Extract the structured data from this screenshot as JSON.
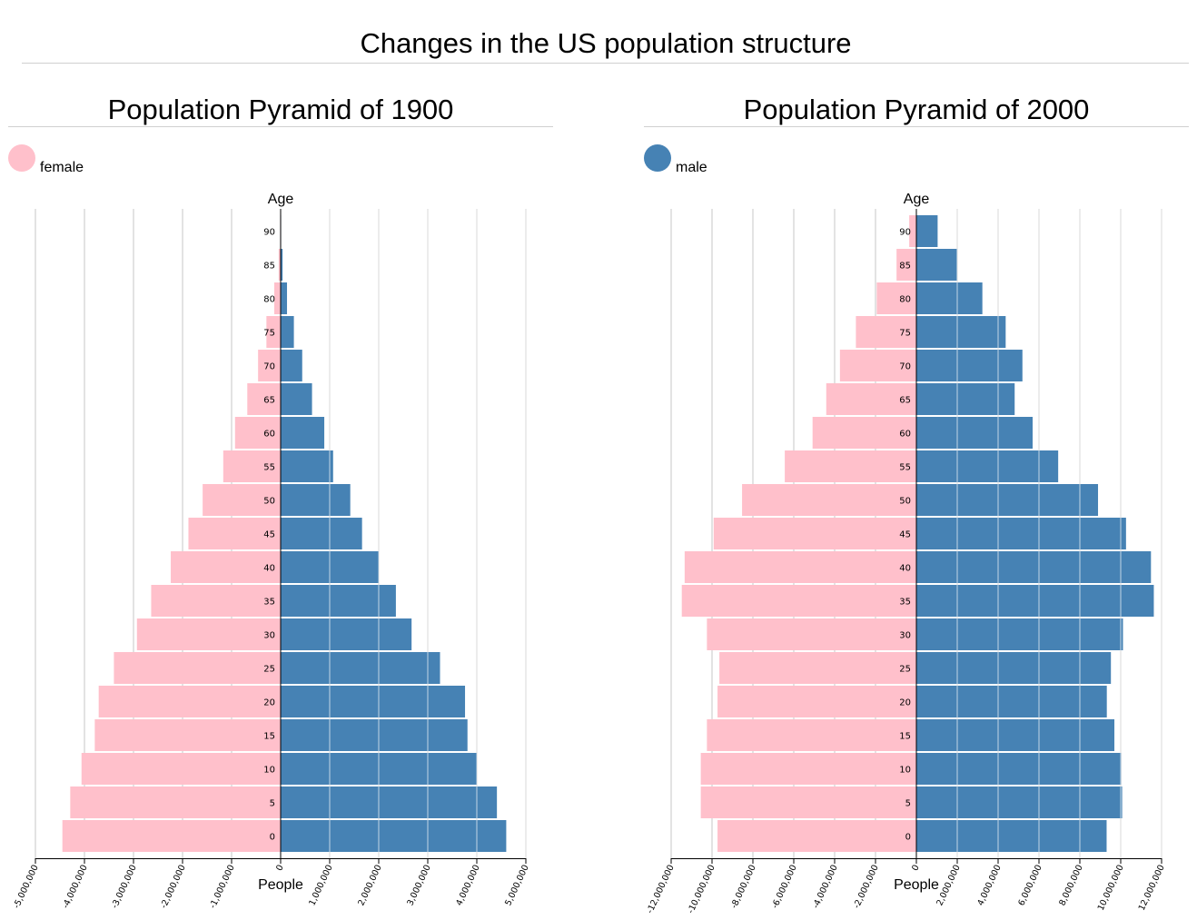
{
  "title": "Changes in the US population structure",
  "colors": {
    "female": "#ffc0cb",
    "male": "#4682b4",
    "grid": "#e3e3e3",
    "rule": "#d0d0d0"
  },
  "chart_data": [
    {
      "type": "bar",
      "orientation": "horizontal-diverging",
      "title": "Population Pyramid of 1900",
      "legend": {
        "label": "female",
        "color": "#ffc0cb",
        "position": "top-left"
      },
      "ylabel": "Age",
      "xlabel": "People",
      "xlim": [
        -5000000,
        5000000
      ],
      "xticks": [
        -5000000,
        -4000000,
        -3000000,
        -2000000,
        -1000000,
        0,
        1000000,
        2000000,
        3000000,
        4000000,
        5000000
      ],
      "xtick_labels": [
        "-5,000,000",
        "-4,000,000",
        "-3,000,000",
        "-2,000,000",
        "-1,000,000",
        "0",
        "1,000,000",
        "2,000,000",
        "3,000,000",
        "4,000,000",
        "5,000,000"
      ],
      "categories": [
        "0",
        "5",
        "10",
        "15",
        "20",
        "25",
        "30",
        "35",
        "40",
        "45",
        "50",
        "55",
        "60",
        "65",
        "70",
        "75",
        "80",
        "85",
        "90"
      ],
      "grid": true,
      "series": [
        {
          "name": "female",
          "values": [
            4450000,
            4290000,
            4060000,
            3790000,
            3710000,
            3400000,
            2930000,
            2640000,
            2240000,
            1880000,
            1590000,
            1170000,
            930000,
            680000,
            460000,
            290000,
            130000,
            40000,
            10000
          ]
        },
        {
          "name": "male",
          "values": [
            4600000,
            4410000,
            4000000,
            3810000,
            3760000,
            3250000,
            2670000,
            2350000,
            2000000,
            1660000,
            1420000,
            1070000,
            890000,
            640000,
            440000,
            270000,
            130000,
            40000,
            10000
          ]
        }
      ]
    },
    {
      "type": "bar",
      "orientation": "horizontal-diverging",
      "title": "Population Pyramid of 2000",
      "legend": {
        "label": "male",
        "color": "#4682b4",
        "position": "top-left"
      },
      "ylabel": "Age",
      "xlabel": "People",
      "xlim": [
        -12000000,
        12000000
      ],
      "xticks": [
        -12000000,
        -10000000,
        -8000000,
        -6000000,
        -4000000,
        -2000000,
        0,
        2000000,
        4000000,
        6000000,
        8000000,
        10000000,
        12000000
      ],
      "xtick_labels": [
        "-12,000,000",
        "-10,000,000",
        "-8,000,000",
        "-6,000,000",
        "-4,000,000",
        "-2,000,000",
        "0",
        "2,000,000",
        "4,000,000",
        "6,000,000",
        "8,000,000",
        "10,000,000",
        "12,000,000"
      ],
      "categories": [
        "0",
        "5",
        "10",
        "15",
        "20",
        "25",
        "30",
        "35",
        "40",
        "45",
        "50",
        "55",
        "60",
        "65",
        "70",
        "75",
        "80",
        "85",
        "90"
      ],
      "grid": true,
      "series": [
        {
          "name": "female",
          "values": [
            9730000,
            10550000,
            10550000,
            10250000,
            9730000,
            9640000,
            10250000,
            11480000,
            11340000,
            9920000,
            8530000,
            6440000,
            5080000,
            4410000,
            3740000,
            2960000,
            1940000,
            970000,
            350000
          ]
        },
        {
          "name": "male",
          "values": [
            9310000,
            10070000,
            10020000,
            9690000,
            9320000,
            9520000,
            10110000,
            11620000,
            11480000,
            10260000,
            8890000,
            6940000,
            5690000,
            4810000,
            5190000,
            4370000,
            3230000,
            1990000,
            1040000
          ]
        }
      ]
    }
  ]
}
